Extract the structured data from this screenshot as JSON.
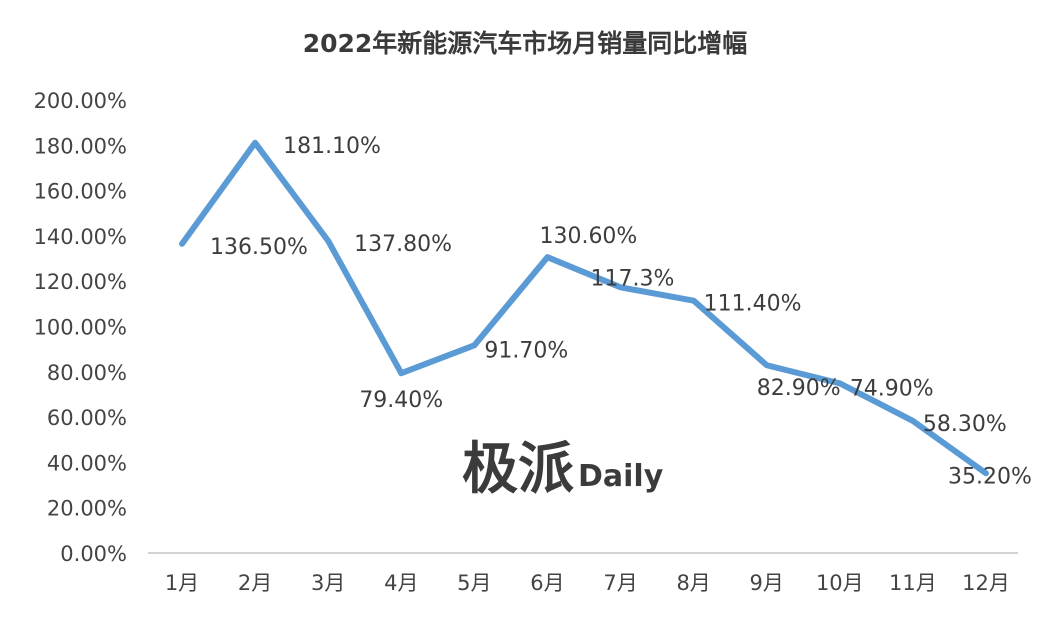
{
  "chart_data": {
    "type": "line",
    "title": "2022年新能源汽车市场月销量同比增幅",
    "categories": [
      "1月",
      "2月",
      "3月",
      "4月",
      "5月",
      "6月",
      "7月",
      "8月",
      "9月",
      "10月",
      "11月",
      "12月"
    ],
    "series": [
      {
        "values": [
          136.5,
          181.1,
          137.8,
          79.4,
          91.7,
          130.6,
          117.3,
          111.4,
          82.9,
          74.9,
          58.3,
          35.2
        ],
        "labels": [
          "136.50%",
          "181.10%",
          "137.80%",
          "79.40%",
          "91.70%",
          "130.60%",
          "117.3%",
          "111.40%",
          "82.90%",
          "74.90%",
          "58.30%",
          "35.20%"
        ],
        "color": "#5b9bd5"
      }
    ],
    "y_ticks": [
      "0.00%",
      "20.00%",
      "40.00%",
      "60.00%",
      "80.00%",
      "100.00%",
      "120.00%",
      "140.00%",
      "160.00%",
      "180.00%",
      "200.00%"
    ],
    "ylim": [
      0,
      200
    ],
    "grid": false,
    "legend": "none"
  },
  "watermark": {
    "cn": "极派",
    "en": "Daily"
  }
}
